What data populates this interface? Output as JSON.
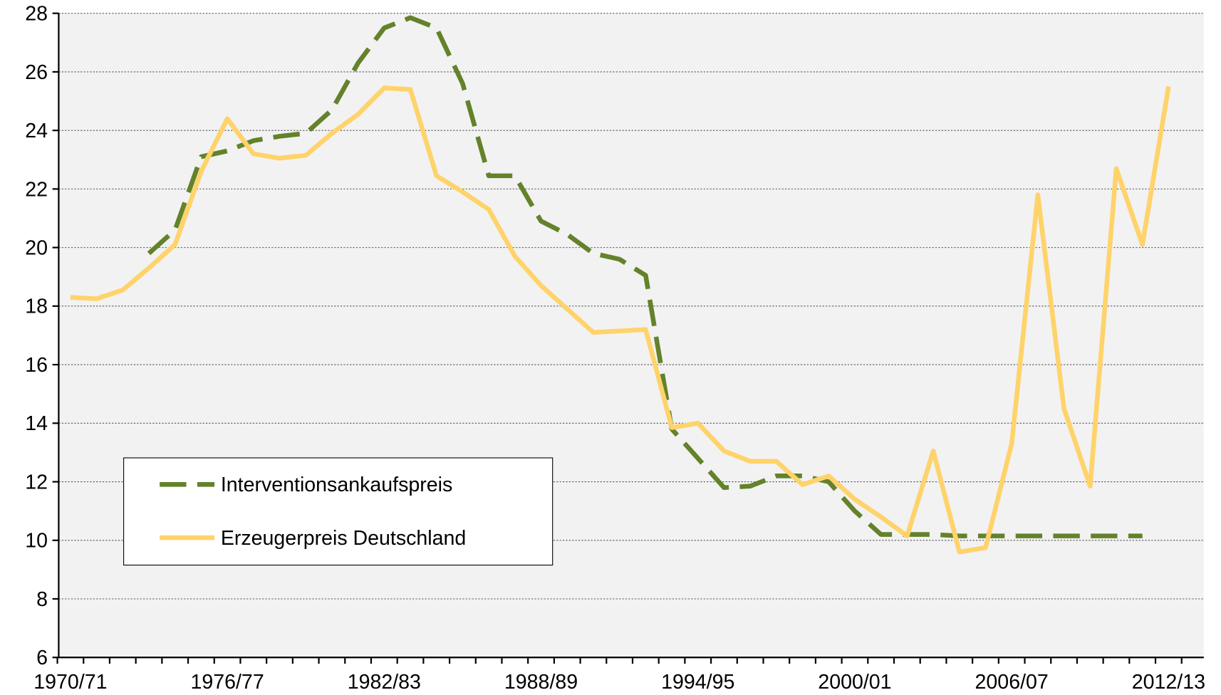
{
  "chart_data": {
    "type": "line",
    "categories": [
      "1970/71",
      null,
      null,
      null,
      null,
      null,
      "1976/77",
      null,
      null,
      null,
      null,
      null,
      "1982/83",
      null,
      null,
      null,
      null,
      null,
      "1988/89",
      null,
      null,
      null,
      null,
      null,
      "1994/95",
      null,
      null,
      null,
      null,
      null,
      "2000/01",
      null,
      null,
      null,
      null,
      null,
      "2006/07",
      null,
      null,
      null,
      null,
      null,
      "2012/13"
    ],
    "series": [
      {
        "name": "Interventionsankaufspreis",
        "color": "#63822a",
        "dashed": true,
        "values": [
          null,
          null,
          null,
          19.8,
          20.6,
          23.1,
          23.3,
          23.65,
          23.8,
          23.9,
          24.7,
          26.3,
          27.5,
          27.85,
          27.5,
          25.6,
          22.45,
          22.45,
          20.9,
          20.45,
          19.8,
          19.6,
          19.05,
          13.8,
          12.8,
          11.8,
          11.85,
          12.2,
          12.2,
          12.0,
          11.0,
          10.2,
          10.2,
          10.2,
          10.15,
          10.15,
          10.15,
          10.15,
          10.15,
          10.15,
          10.15,
          10.15,
          null
        ]
      },
      {
        "name": "Erzeugerpreis Deutschland",
        "color": "#ffd36b",
        "dashed": false,
        "values": [
          18.3,
          18.25,
          18.55,
          19.3,
          20.1,
          22.6,
          24.4,
          23.2,
          23.05,
          23.15,
          23.9,
          24.55,
          25.45,
          25.4,
          22.45,
          21.9,
          21.3,
          19.7,
          18.7,
          17.9,
          17.1,
          17.15,
          17.2,
          13.85,
          14.0,
          13.05,
          12.7,
          12.7,
          11.9,
          12.2,
          11.4,
          10.8,
          10.15,
          13.05,
          9.6,
          9.75,
          13.3,
          21.8,
          14.5,
          11.85,
          22.7,
          20.1,
          25.5
        ]
      }
    ],
    "ylim": [
      6,
      28
    ],
    "yticks": [
      6,
      8,
      10,
      12,
      14,
      16,
      18,
      20,
      22,
      24,
      26,
      28
    ],
    "grid": true,
    "legend": "lower left"
  }
}
